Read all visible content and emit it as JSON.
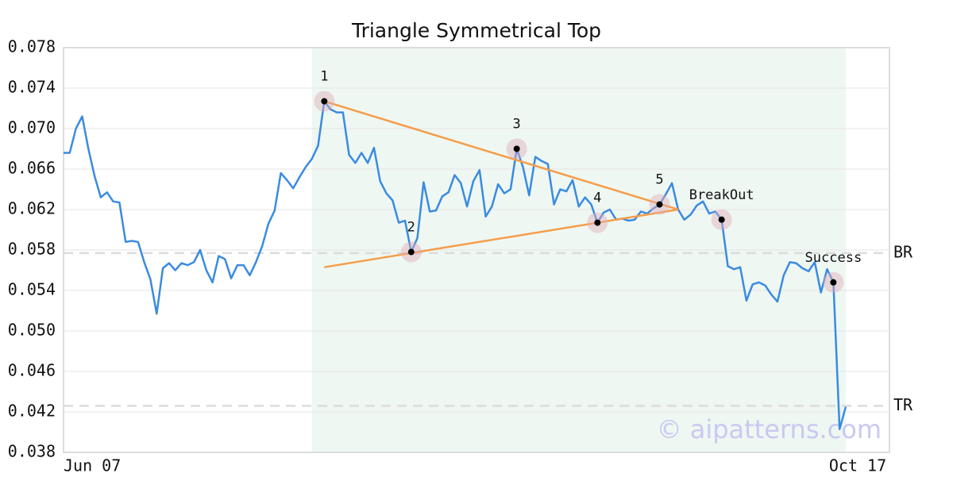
{
  "chart_data": {
    "type": "line",
    "title": "Triangle Symmetrical Top",
    "watermark": "© aipatterns.com",
    "categories": [
      "Jun 07",
      null,
      null,
      null,
      null,
      null,
      null,
      null,
      null,
      null,
      null,
      null,
      null,
      null,
      null,
      null,
      null,
      null,
      null,
      null,
      null,
      null,
      null,
      null,
      null,
      null,
      null,
      null,
      null,
      null,
      null,
      null,
      null,
      null,
      null,
      null,
      null,
      null,
      null,
      null,
      null,
      null,
      null,
      null,
      null,
      null,
      null,
      null,
      null,
      null,
      null,
      null,
      null,
      null,
      null,
      null,
      null,
      null,
      null,
      null,
      null,
      null,
      null,
      null,
      null,
      null,
      null,
      null,
      null,
      null,
      null,
      null,
      null,
      null,
      null,
      null,
      null,
      null,
      null,
      null,
      null,
      null,
      null,
      null,
      null,
      null,
      null,
      null,
      null,
      null,
      null,
      null,
      null,
      null,
      null,
      null,
      null,
      null,
      null,
      null,
      null,
      null,
      null,
      null,
      null,
      null,
      null,
      null,
      null,
      null,
      null,
      null,
      null,
      null,
      null,
      null,
      null,
      null,
      null,
      null,
      null,
      null,
      null,
      null,
      null,
      null,
      "Oct 17"
    ],
    "series": [
      {
        "color": "#3a8be0",
        "values": [
          0.0676,
          0.0676,
          0.07,
          0.0712,
          0.068,
          0.0653,
          0.0632,
          0.0637,
          0.0628,
          0.0627,
          0.0588,
          0.0589,
          0.0588,
          0.0568,
          0.0551,
          0.0517,
          0.0562,
          0.0567,
          0.056,
          0.0567,
          0.0565,
          0.0568,
          0.058,
          0.056,
          0.0548,
          0.0574,
          0.0571,
          0.0552,
          0.0565,
          0.0565,
          0.0555,
          0.0568,
          0.0584,
          0.0606,
          0.0619,
          0.0656,
          0.0649,
          0.0641,
          0.0652,
          0.0662,
          0.067,
          0.0683,
          0.0727,
          0.0719,
          0.0716,
          0.0716,
          0.0674,
          0.0666,
          0.0676,
          0.0666,
          0.0681,
          0.0648,
          0.0636,
          0.0629,
          0.0607,
          0.0609,
          0.0578,
          0.0592,
          0.0647,
          0.0618,
          0.0619,
          0.0633,
          0.0637,
          0.0654,
          0.0646,
          0.0623,
          0.0648,
          0.0659,
          0.0613,
          0.0623,
          0.0645,
          0.0636,
          0.064,
          0.068,
          0.0662,
          0.0634,
          0.0672,
          0.0668,
          0.0665,
          0.0625,
          0.064,
          0.0638,
          0.0649,
          0.0623,
          0.0632,
          0.0625,
          0.0607,
          0.0617,
          0.062,
          0.061,
          0.0611,
          0.0609,
          0.061,
          0.0618,
          0.0616,
          0.0621,
          0.0625,
          0.0635,
          0.0646,
          0.062,
          0.061,
          0.0615,
          0.0624,
          0.0628,
          0.0616,
          0.0618,
          0.061,
          0.0564,
          0.0561,
          0.0563,
          0.053,
          0.0546,
          0.0548,
          0.0545,
          0.0536,
          0.0529,
          0.0555,
          0.0568,
          0.0567,
          0.0562,
          0.0559,
          0.0568,
          0.0538,
          0.0561,
          0.0548,
          0.0403,
          0.0425
        ]
      }
    ],
    "ylim": [
      0.038,
      0.078
    ],
    "yticks": [
      0.038,
      0.042,
      0.046,
      {
        "value": 0.05,
        "label": "0.050"
      },
      0.054,
      0.058,
      0.062,
      0.066,
      {
        "value": 0.07,
        "label": "0.070"
      },
      0.074,
      0.078
    ],
    "grid": true,
    "shade": {
      "from": 40,
      "to": 126,
      "color": "#eef7f2"
    },
    "trendlines": [
      {
        "color": "#f59d4a",
        "x": [
          42,
          99
        ],
        "values": [
          0.0727,
          0.062
        ]
      },
      {
        "color": "#f59d4a",
        "x": [
          42,
          99
        ],
        "values": [
          0.0563,
          0.062
        ]
      }
    ],
    "hlines": [
      {
        "label": "BR",
        "value": 0.0577
      },
      {
        "label": "TR",
        "value": 0.0426
      }
    ],
    "annotations": [
      {
        "text": "1",
        "index": 42
      },
      {
        "text": "2",
        "index": 56
      },
      {
        "text": "3",
        "index": 73
      },
      {
        "text": "4",
        "index": 86
      },
      {
        "text": "5",
        "index": 96
      },
      {
        "text": "BreakOut",
        "index": 106
      },
      {
        "text": "Success",
        "index": 124
      }
    ]
  }
}
